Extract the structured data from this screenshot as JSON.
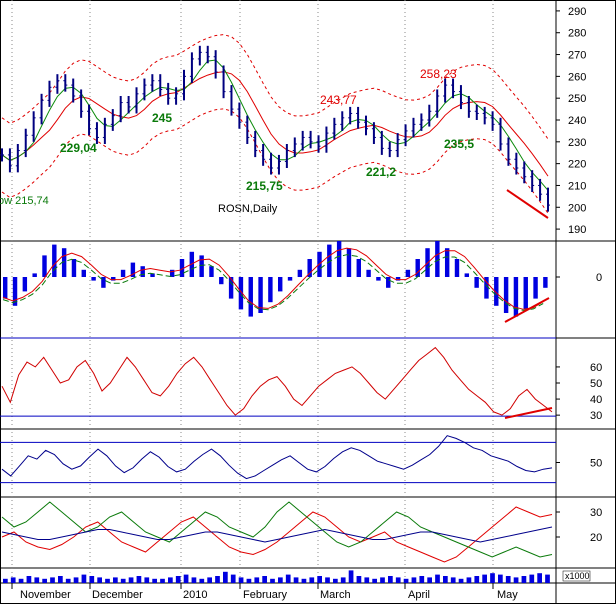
{
  "chart_data": {
    "type": "line",
    "symbol_label": "ROSN,Daily",
    "price": {
      "ylim": [
        185,
        295
      ],
      "yticks": [
        190,
        200,
        210,
        220,
        230,
        240,
        250,
        260,
        270,
        280,
        290
      ],
      "approx_close": [
        224,
        219,
        226,
        233,
        241,
        249,
        255,
        258,
        256,
        251,
        244,
        236,
        232,
        238,
        242,
        248,
        246,
        252,
        256,
        258,
        254,
        250,
        252,
        260,
        268,
        271,
        269,
        262,
        253,
        245,
        239,
        232,
        226,
        222,
        218,
        221,
        226,
        229,
        232,
        230,
        228,
        234,
        238,
        241,
        243,
        239,
        236,
        232,
        227,
        226,
        231,
        235,
        238,
        240,
        244,
        251,
        256,
        253,
        248,
        244,
        243,
        241,
        238,
        229,
        222,
        218,
        214,
        210,
        206,
        201
      ]
    },
    "annotations": [
      {
        "text": "ow 215,74",
        "color": "green"
      },
      {
        "text": "229,04",
        "color": "green"
      },
      {
        "text": "245",
        "color": "green"
      },
      {
        "text": "215,75",
        "color": "green"
      },
      {
        "text": "243,77",
        "color": "red"
      },
      {
        "text": "221,2",
        "color": "green"
      },
      {
        "text": "258,23",
        "color": "red"
      },
      {
        "text": "235,5",
        "color": "green"
      }
    ],
    "macd": {
      "yticks": [
        0
      ],
      "approx_hist": [
        -6,
        -8,
        -4,
        1,
        6,
        9,
        8,
        5,
        2,
        -1,
        -3,
        -1,
        2,
        4,
        3,
        1,
        0,
        2,
        5,
        7,
        6,
        3,
        -2,
        -6,
        -9,
        -11,
        -10,
        -7,
        -4,
        -1,
        2,
        5,
        7,
        9,
        10,
        8,
        5,
        2,
        -1,
        -3,
        -1,
        2,
        5,
        8,
        10,
        8,
        5,
        1,
        -3,
        -6,
        -8,
        -10,
        -11,
        -9,
        -6,
        -3
      ]
    },
    "rsi": {
      "yticks": [
        30,
        40,
        50,
        60
      ],
      "levels": [
        70,
        30
      ],
      "approx_values": [
        48,
        38,
        55,
        63,
        60,
        66,
        58,
        50,
        52,
        60,
        64,
        56,
        45,
        50,
        58,
        66,
        60,
        52,
        44,
        42,
        48,
        56,
        62,
        66,
        60,
        52,
        44,
        36,
        30,
        34,
        42,
        48,
        52,
        54,
        48,
        40,
        36,
        42,
        48,
        52,
        56,
        58,
        60,
        56,
        50,
        44,
        40,
        46,
        52,
        58,
        64,
        68,
        72,
        66,
        58,
        52,
        46,
        42,
        38,
        32,
        30,
        34,
        42,
        46,
        40,
        36,
        32
      ]
    },
    "oscillator": {
      "yticks": [
        50
      ],
      "levels": [
        80,
        20
      ],
      "approx_values": [
        40,
        30,
        45,
        60,
        55,
        68,
        62,
        48,
        40,
        45,
        58,
        70,
        60,
        45,
        35,
        42,
        55,
        66,
        58,
        44,
        36,
        40,
        52,
        62,
        70,
        60,
        46,
        34,
        26,
        30,
        38,
        46,
        54,
        60,
        50,
        40,
        36,
        44,
        56,
        66,
        72,
        68,
        60,
        52,
        48,
        44,
        40,
        46,
        54,
        62,
        74,
        90,
        86,
        80,
        72,
        68,
        60,
        56,
        52,
        44,
        38,
        36,
        40,
        42
      ]
    },
    "dmi": {
      "yticks": [
        20,
        30
      ],
      "series": [
        {
          "color": "red",
          "approx_values": [
            20,
            22,
            18,
            16,
            15,
            17,
            20,
            24,
            26,
            22,
            18,
            16,
            14,
            18,
            22,
            26,
            28,
            24,
            20,
            16,
            14,
            13,
            15,
            18,
            22,
            26,
            30,
            28,
            24,
            20,
            18,
            20,
            22,
            18,
            16,
            14,
            12,
            10,
            12,
            16,
            20,
            24,
            28,
            32,
            30,
            28,
            29
          ]
        },
        {
          "color": "green",
          "approx_values": [
            28,
            24,
            26,
            30,
            34,
            30,
            26,
            22,
            24,
            28,
            30,
            26,
            22,
            20,
            18,
            22,
            26,
            30,
            28,
            24,
            22,
            20,
            24,
            30,
            34,
            30,
            26,
            22,
            18,
            16,
            18,
            22,
            26,
            30,
            28,
            24,
            22,
            20,
            18,
            16,
            14,
            12,
            14,
            16,
            14,
            12,
            13
          ]
        },
        {
          "color": "navy",
          "approx_values": [
            22,
            21,
            20,
            19,
            19,
            20,
            21,
            22,
            23,
            23,
            22,
            21,
            20,
            19,
            19,
            20,
            21,
            22,
            22,
            21,
            20,
            19,
            18,
            19,
            20,
            21,
            22,
            23,
            22,
            21,
            20,
            19,
            19,
            20,
            21,
            22,
            22,
            21,
            20,
            19,
            18,
            19,
            20,
            21,
            22,
            23,
            24
          ]
        }
      ]
    },
    "volume": {
      "multiplier_label": "x1000",
      "approx_values": [
        3,
        4,
        3,
        5,
        4,
        3,
        4,
        5,
        3,
        4,
        6,
        5,
        4,
        3,
        4,
        3,
        4,
        5,
        4,
        3,
        3,
        4,
        5,
        6,
        4,
        3,
        4,
        5,
        8,
        6,
        4,
        3,
        4,
        5,
        3,
        4,
        6,
        4,
        3,
        4,
        5,
        4,
        3,
        4,
        9,
        5,
        4,
        3,
        4,
        5,
        4,
        3,
        4,
        5,
        4,
        6,
        5,
        4,
        3,
        4,
        5,
        6,
        7,
        6,
        5,
        4,
        5,
        6,
        7,
        6
      ]
    },
    "x_labels": [
      "November",
      "December",
      "2010",
      "February",
      "March",
      "April",
      "May"
    ]
  }
}
